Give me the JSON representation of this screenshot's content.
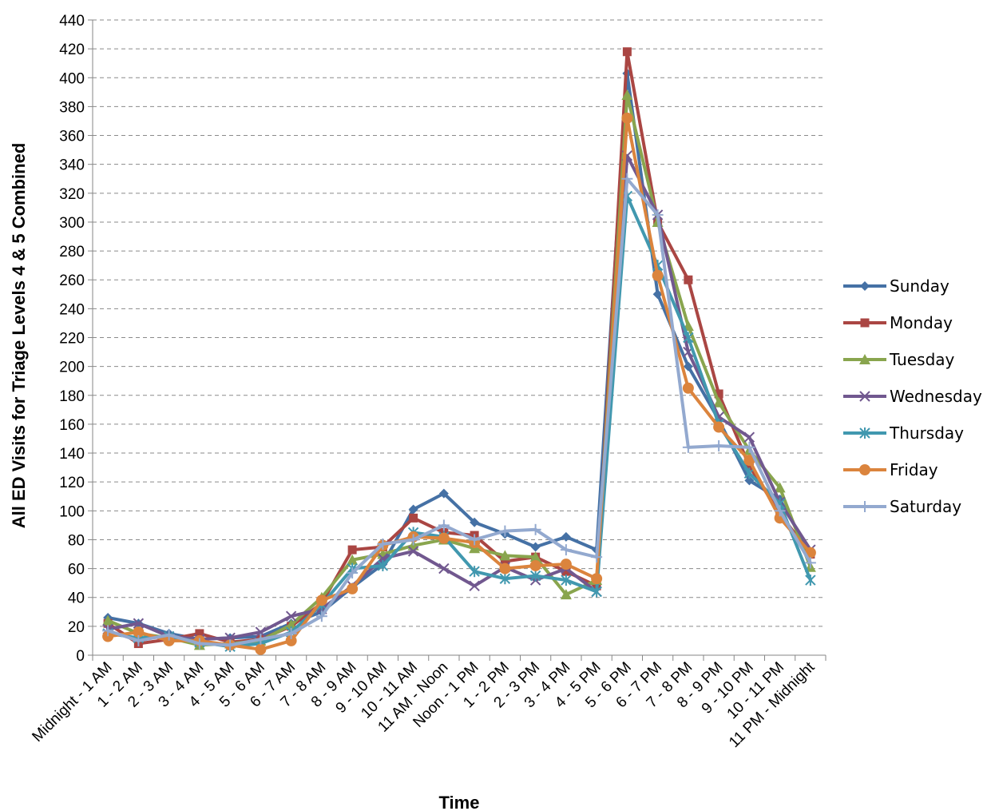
{
  "chart_data": {
    "type": "line",
    "title": "",
    "xlabel": "Time",
    "ylabel": "All ED Visits for Triage Levels 4 & 5 Combined",
    "ylim": [
      0,
      440
    ],
    "ytick_step": 20,
    "grid": true,
    "legend_position": "right",
    "categories": [
      "Midnight - 1 AM",
      "1 - 2 AM",
      "2 - 3 AM",
      "3 - 4 AM",
      "4 - 5 AM",
      "5 - 6 AM",
      "6 - 7 AM",
      "7 - 8 AM",
      "8 - 9 AM",
      "9 - 10 AM",
      "10 - 11 AM",
      "11 AM - Noon",
      "Noon - 1 PM",
      "1 - 2 PM",
      "2 - 3 PM",
      "3 - 4 PM",
      "4 - 5 PM",
      "5 - 6 PM",
      "6 - 7 PM",
      "7 - 8 PM",
      "8 - 9 PM",
      "9 - 10 PM",
      "10 - 11 PM",
      "11 PM - Midnight"
    ],
    "series": [
      {
        "name": "Sunday",
        "color": "#4571A5",
        "marker": "diamond",
        "values": [
          26,
          22,
          15,
          11,
          12,
          13,
          22,
          30,
          47,
          63,
          101,
          112,
          92,
          84,
          75,
          82,
          73,
          403,
          250,
          200,
          163,
          121,
          108,
          70
        ]
      },
      {
        "name": "Monday",
        "color": "#AA4643",
        "marker": "square",
        "values": [
          22,
          8,
          11,
          15,
          9,
          11,
          20,
          36,
          73,
          75,
          95,
          85,
          83,
          65,
          68,
          58,
          48,
          418,
          300,
          260,
          181,
          131,
          98,
          70
        ]
      },
      {
        "name": "Tuesday",
        "color": "#89A54E",
        "marker": "triangle",
        "values": [
          24,
          15,
          12,
          7,
          8,
          10,
          21,
          40,
          66,
          70,
          76,
          80,
          74,
          69,
          68,
          42,
          52,
          388,
          300,
          228,
          175,
          142,
          116,
          61
        ]
      },
      {
        "name": "Wednesday",
        "color": "#71588F",
        "marker": "x",
        "values": [
          18,
          22,
          13,
          11,
          12,
          16,
          27,
          32,
          48,
          67,
          72,
          60,
          48,
          61,
          52,
          60,
          44,
          346,
          305,
          210,
          165,
          151,
          106,
          73
        ]
      },
      {
        "name": "Thursday",
        "color": "#4198AF",
        "marker": "star",
        "values": [
          15,
          12,
          13,
          9,
          6,
          8,
          16,
          35,
          60,
          62,
          85,
          82,
          58,
          53,
          55,
          52,
          44,
          318,
          270,
          220,
          160,
          126,
          105,
          52
        ]
      },
      {
        "name": "Friday",
        "color": "#DB843D",
        "marker": "circle",
        "values": [
          13,
          16,
          10,
          10,
          7,
          4,
          10,
          38,
          46,
          76,
          82,
          81,
          78,
          60,
          62,
          63,
          53,
          372,
          263,
          185,
          158,
          135,
          95,
          71
        ]
      },
      {
        "name": "Saturday",
        "color": "#93A9CF",
        "marker": "plus",
        "values": [
          17,
          10,
          14,
          8,
          7,
          11,
          15,
          27,
          57,
          77,
          80,
          90,
          80,
          86,
          87,
          73,
          68,
          330,
          305,
          144,
          145,
          144,
          100,
          64
        ]
      }
    ]
  }
}
